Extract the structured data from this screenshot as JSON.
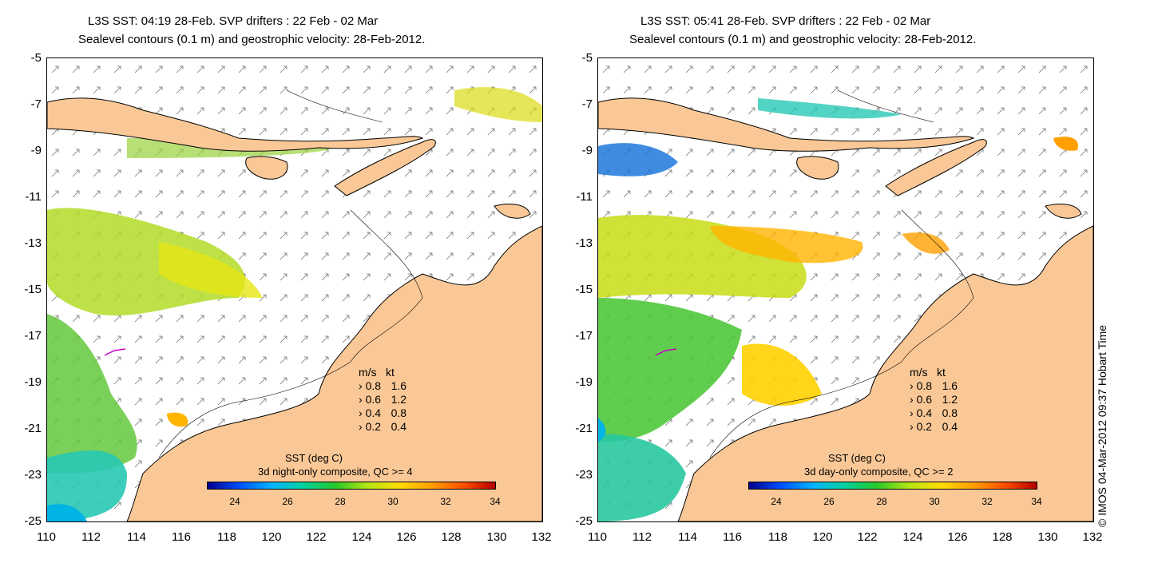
{
  "left": {
    "title1": "L3S SST: 04:19 28-Feb. SVP drifters : 22 Feb - 02 Mar",
    "title2": "Sealevel contours (0.1 m) and geostrophic velocity: 28-Feb-2012.",
    "colorbar_label": "SST (deg C)",
    "composite_label": "3d night-only composite, QC >= 4"
  },
  "right": {
    "title1": "L3S SST: 05:41 28-Feb. SVP drifters : 22 Feb - 02 Mar",
    "title2": "Sealevel contours (0.1 m) and geostrophic velocity: 28-Feb-2012.",
    "colorbar_label": "SST (deg C)",
    "composite_label": "3d day-only composite, QC >= 2"
  },
  "axes": {
    "lat_ticks": [
      "-5",
      "-7",
      "-9",
      "-11",
      "-13",
      "-15",
      "-17",
      "-19",
      "-21",
      "-23",
      "-25"
    ],
    "lon_ticks": [
      "110",
      "112",
      "114",
      "116",
      "118",
      "120",
      "122",
      "124",
      "126",
      "128",
      "130",
      "132"
    ]
  },
  "velocity_legend": {
    "header_ms": "m/s",
    "header_kt": "kt",
    "rows": [
      {
        "ms": "0.8",
        "kt": "1.6"
      },
      {
        "ms": "0.6",
        "kt": "1.2"
      },
      {
        "ms": "0.4",
        "kt": "0.8"
      },
      {
        "ms": "0.2",
        "kt": "0.4"
      }
    ]
  },
  "colorbar_ticks": [
    "24",
    "26",
    "28",
    "30",
    "32",
    "34"
  ],
  "credit": "© IMOS 04-Mar-2012 09:37 Hobart Time",
  "colors": {
    "land": "#fac896",
    "coast": "#000000",
    "sst_warm": "#ffdc00",
    "sst_mid": "#64c83c",
    "sst_cool": "#00b4e6"
  }
}
